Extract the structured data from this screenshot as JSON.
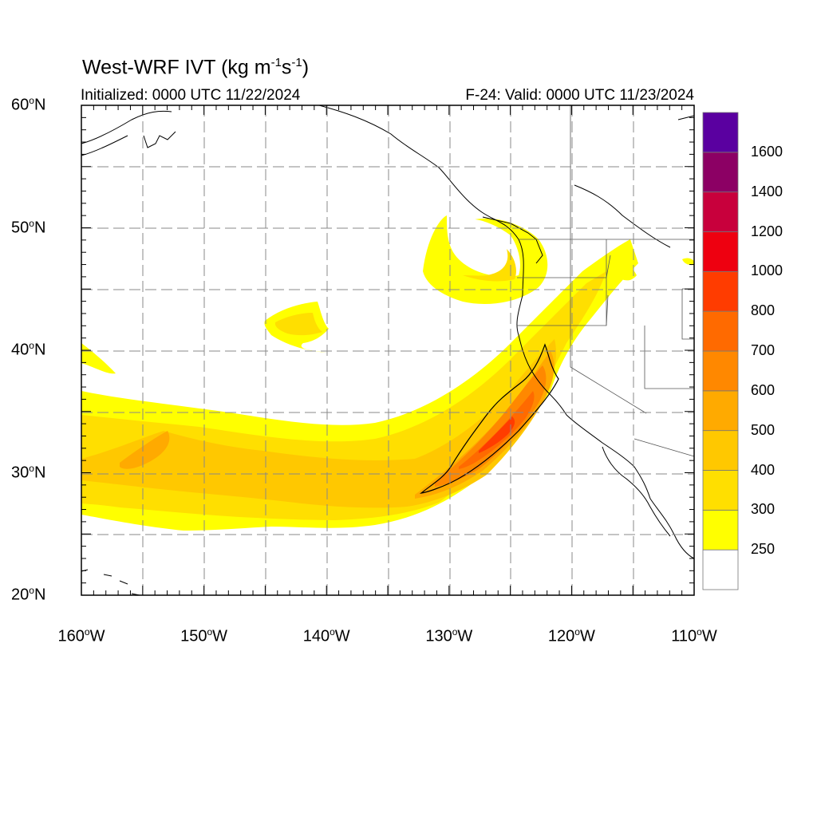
{
  "title": {
    "main": "West-WRF IVT (kg m",
    "sup1": "-1",
    "mid": "s",
    "sup2": "-1",
    "end": ")"
  },
  "subtitle": {
    "initialized": "Initialized: 0000 UTC 11/22/2024",
    "valid": "F-24: Valid: 0000 UTC 11/23/2024"
  },
  "axes": {
    "lat": [
      {
        "deg": "60",
        "hemi": "N",
        "value": 60
      },
      {
        "deg": "50",
        "hemi": "N",
        "value": 50
      },
      {
        "deg": "40",
        "hemi": "N",
        "value": 40
      },
      {
        "deg": "30",
        "hemi": "N",
        "value": 30
      },
      {
        "deg": "20",
        "hemi": "N",
        "value": 20
      }
    ],
    "lon": [
      {
        "deg": "160",
        "hemi": "W",
        "value": -160
      },
      {
        "deg": "150",
        "hemi": "W",
        "value": -150
      },
      {
        "deg": "140",
        "hemi": "W",
        "value": -140
      },
      {
        "deg": "130",
        "hemi": "W",
        "value": -130
      },
      {
        "deg": "120",
        "hemi": "W",
        "value": -120
      },
      {
        "deg": "110",
        "hemi": "W",
        "value": -110
      }
    ],
    "lon_range": [
      -160,
      -110
    ],
    "lat_range": [
      20,
      60
    ],
    "grid": true
  },
  "colorbar": {
    "levels": [
      "250",
      "300",
      "400",
      "500",
      "600",
      "700",
      "800",
      "1000",
      "1200",
      "1400",
      "1600"
    ],
    "colors": [
      "#ffffff",
      "#ffff00",
      "#ffdf00",
      "#ffc800",
      "#ffaa00",
      "#ff8800",
      "#ff6a00",
      "#ff3c00",
      "#ee0010",
      "#c8003c",
      "#8c0064",
      "#5a00a0"
    ]
  },
  "chart_data": {
    "type": "heatmap",
    "variable": "IVT",
    "units": "kg m-1 s-1",
    "thresholds": [
      250,
      300,
      400,
      500,
      600,
      700,
      800,
      1000,
      1200,
      1400,
      1600
    ],
    "contour_line_value": 600,
    "features": [
      {
        "band": "300-600",
        "lon_range": [
          -160,
          -118
        ],
        "lat_range": [
          26,
          38
        ]
      },
      {
        "band": "400-500",
        "lon_range": [
          -155,
          -150
        ],
        "lat_range": [
          31,
          34
        ]
      },
      {
        "band": "600-800",
        "lon_range": [
          -131,
          -122
        ],
        "lat_range": [
          28,
          40
        ]
      },
      {
        "band": "800-1000",
        "lon_range": [
          -127,
          -124
        ],
        "lat_range": [
          31,
          35
        ]
      },
      {
        "band": "300-400",
        "lon_range": [
          -135,
          -123
        ],
        "lat_range": [
          44,
          49
        ]
      },
      {
        "band": "250-300",
        "lon_range": [
          -145,
          -139
        ],
        "lat_range": [
          41,
          44
        ]
      }
    ]
  }
}
